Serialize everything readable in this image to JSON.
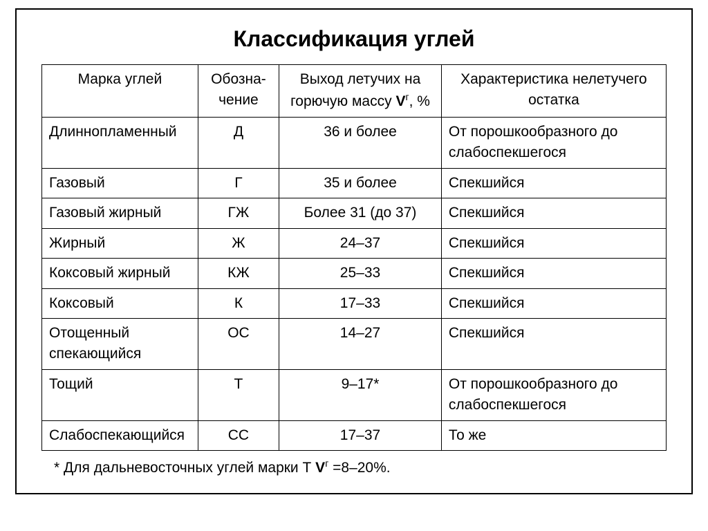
{
  "document": {
    "title": "Классификация углей",
    "background_color": "#ffffff",
    "text_color": "#000000",
    "border_color": "#000000",
    "title_fontsize": 32,
    "table_fontsize": 21,
    "footnote_fontsize": 21
  },
  "table": {
    "columns": [
      {
        "key": "name",
        "label": "Марка углей",
        "width": "25%",
        "align_body": "left",
        "align_header": "center"
      },
      {
        "key": "symbol",
        "label": "Обозна-\nчение",
        "width": "13%",
        "align_body": "center",
        "align_header": "center"
      },
      {
        "key": "volatiles",
        "label_html": "Выход летучих на горючую массу <span class=\"bold\">V</span><span class=\"super\">г</span>, %",
        "width": "26%",
        "align_body": "center",
        "align_header": "center"
      },
      {
        "key": "character",
        "label": "Характеристика нелетучего остатка",
        "width": "36%",
        "align_body": "left",
        "align_header": "center"
      }
    ],
    "rows": [
      {
        "name": "Длиннопламенный",
        "symbol": "Д",
        "volatiles": "36 и более",
        "character": "От порошкообразного до слабоспекшегося"
      },
      {
        "name": "Газовый",
        "symbol": "Г",
        "volatiles": "35 и более",
        "character": "Спекшийся"
      },
      {
        "name": "Газовый жирный",
        "symbol": "ГЖ",
        "volatiles": "Более 31 (до 37)",
        "character": "Спекшийся"
      },
      {
        "name": "Жирный",
        "symbol": "Ж",
        "volatiles": "24–37",
        "character": "Спекшийся"
      },
      {
        "name": "Коксовый жирный",
        "symbol": "КЖ",
        "volatiles": "25–33",
        "character": "Спекшийся"
      },
      {
        "name": "Коксовый",
        "symbol": "К",
        "volatiles": "17–33",
        "character": "Спекшийся"
      },
      {
        "name": "Отощенный спекающийся",
        "symbol": "ОС",
        "volatiles": "14–27",
        "character": "Спекшийся"
      },
      {
        "name": "Тощий",
        "symbol": "Т",
        "volatiles": "9–17*",
        "character": "От порошкообразного до слабоспекшегося"
      },
      {
        "name": "Слабоспекающийся",
        "symbol": "СС",
        "volatiles": "17–37",
        "character": "То же"
      }
    ]
  },
  "footnote_html": "* Для дальневосточных углей марки Т <span class=\"bold\">V</span><span class=\"super\">г</span> =8–20%."
}
